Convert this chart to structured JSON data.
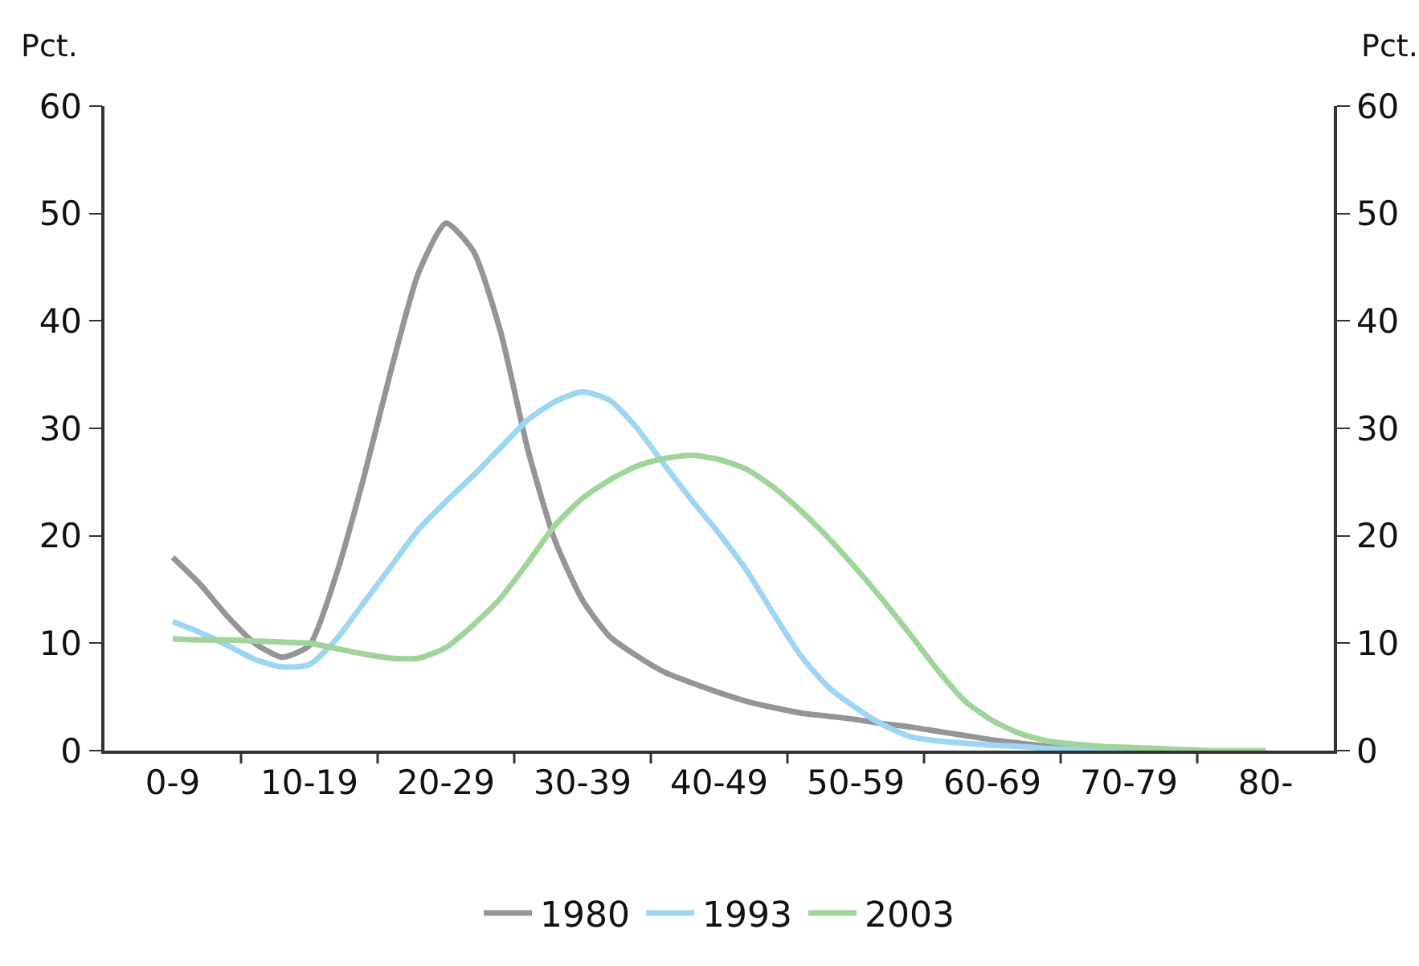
{
  "chart_data": {
    "type": "line",
    "ylabel": "Pct.",
    "y2label": "Pct.",
    "categories": [
      "0-9",
      null,
      null,
      null,
      null,
      "10-19",
      null,
      null,
      null,
      null,
      "20-29",
      null,
      null,
      null,
      null,
      "30-39",
      null,
      null,
      null,
      null,
      "40-49",
      null,
      null,
      null,
      null,
      "50-59",
      null,
      null,
      null,
      null,
      "60-69",
      null,
      null,
      null,
      null,
      "70-79",
      null,
      null,
      null,
      null,
      "80-"
    ],
    "ylim": [
      0,
      60
    ],
    "yticks": [
      0,
      10,
      20,
      30,
      40,
      50,
      60
    ],
    "y2lim": [
      0,
      60
    ],
    "y2ticks": [
      0,
      10,
      20,
      30,
      40,
      50,
      60
    ],
    "legend": "bottom",
    "marker": "none",
    "line_style": "solid",
    "series": [
      {
        "name": "1980",
        "color": "#939598",
        "values": [
          18,
          15.5,
          12.5,
          10,
          8.7,
          9.8,
          16.5,
          25.5,
          35.5,
          44.5,
          49.1,
          46.5,
          39,
          28,
          19.5,
          14,
          10.6,
          8.8,
          7.3,
          6.3,
          5.4,
          4.6,
          4,
          3.5,
          3.2,
          2.9,
          2.5,
          2.2,
          1.8,
          1.4,
          1,
          0.7,
          0.4,
          0.2,
          null,
          null,
          null,
          null,
          null,
          null,
          null
        ]
      },
      {
        "name": "1993",
        "color": "#9dd6f3",
        "values": [
          12,
          11,
          9.8,
          8.5,
          7.8,
          8,
          10.4,
          13.8,
          17.2,
          20.6,
          23.2,
          25.6,
          28.2,
          30.8,
          32.5,
          33.4,
          32.6,
          30,
          26.6,
          23.3,
          20.2,
          16.8,
          12.7,
          8.8,
          5.9,
          4,
          2.4,
          1.3,
          0.9,
          0.7,
          0.5,
          0.4,
          0.2,
          0.1,
          0,
          0,
          0,
          null,
          null,
          null,
          null
        ]
      },
      {
        "name": "2003",
        "color": "#9fd49a",
        "values": [
          10.4,
          10.3,
          10.3,
          10.2,
          10.1,
          10,
          9.5,
          9,
          8.6,
          8.6,
          9.6,
          11.7,
          14.2,
          17.5,
          21,
          23.5,
          25.2,
          26.5,
          27.2,
          27.5,
          27.1,
          26.2,
          24.5,
          22.3,
          19.8,
          17,
          14,
          10.8,
          7.5,
          4.6,
          2.8,
          1.6,
          0.9,
          0.6,
          0.4,
          0.3,
          0.2,
          0.1,
          0,
          0,
          0
        ]
      }
    ]
  }
}
